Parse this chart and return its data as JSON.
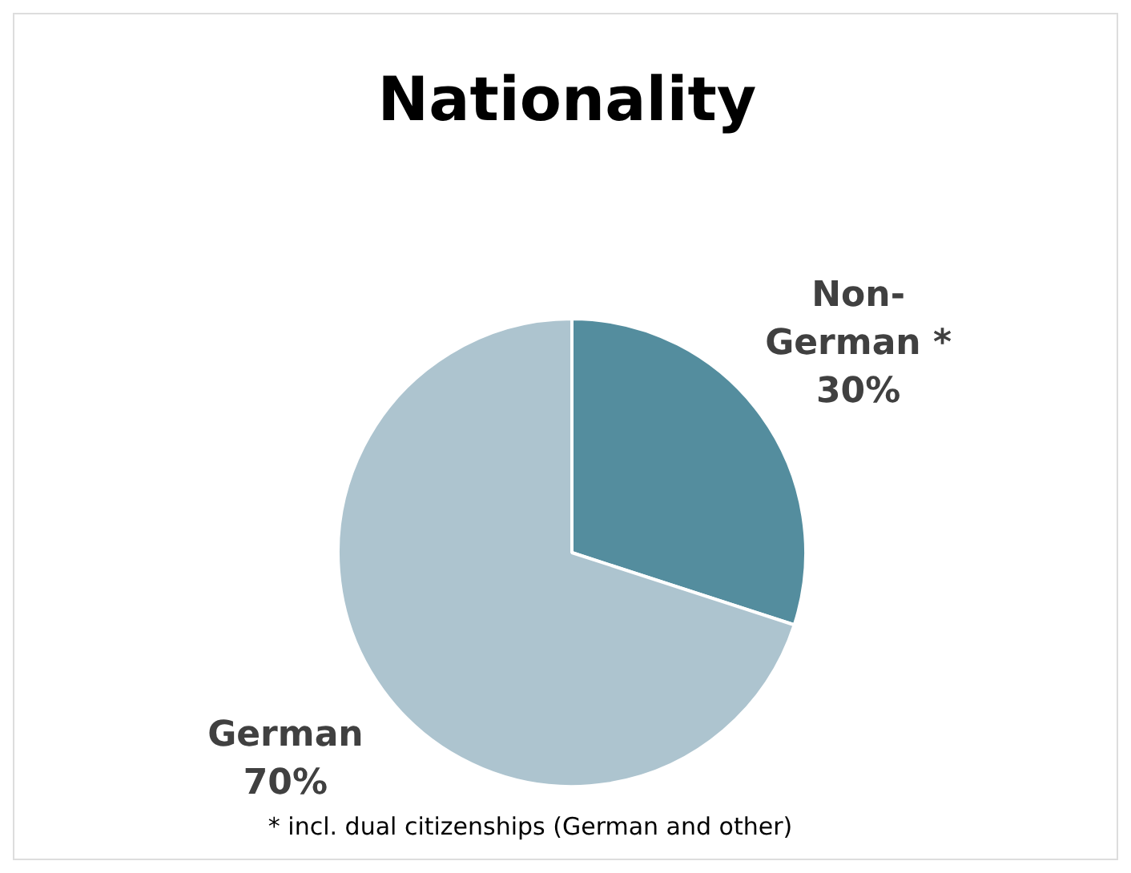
{
  "chart_data": {
    "type": "pie",
    "title": "Nationality",
    "categories": [
      "Non-German *",
      "German"
    ],
    "values": [
      30,
      70
    ],
    "colors": [
      "#548d9e",
      "#adc4cf"
    ],
    "value_labels": [
      "30%",
      "70%"
    ],
    "legend": false,
    "annotations": [
      "* incl. dual citizenships (German and other)"
    ]
  }
}
